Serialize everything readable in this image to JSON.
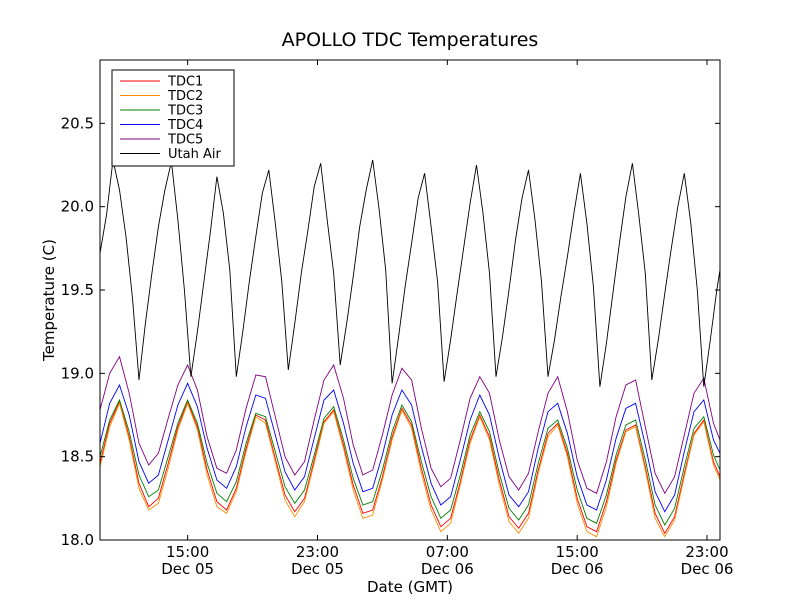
{
  "chart_data": {
    "type": "line",
    "title": "APOLLO TDC Temperatures",
    "xlabel": "Date (GMT)",
    "ylabel": "Temperature (C)",
    "x_unit": "hours since Dec 05 00:00 GMT",
    "xlim": [
      9.6,
      47.8
    ],
    "ylim": [
      18.0,
      20.88
    ],
    "grid": false,
    "legend_position": "top-left",
    "x_ticks": [
      {
        "value": 15,
        "time": "15:00",
        "date": "Dec 05"
      },
      {
        "value": 23,
        "time": "23:00",
        "date": "Dec 05"
      },
      {
        "value": 31,
        "time": "07:00",
        "date": "Dec 06"
      },
      {
        "value": 39,
        "time": "15:00",
        "date": "Dec 06"
      },
      {
        "value": 47,
        "time": "23:00",
        "date": "Dec 06"
      }
    ],
    "y_ticks": [
      {
        "value": 18.0,
        "label": "18.0"
      },
      {
        "value": 18.5,
        "label": "18.5"
      },
      {
        "value": 19.0,
        "label": "19.0"
      },
      {
        "value": 19.5,
        "label": "19.5"
      },
      {
        "value": 20.0,
        "label": "20.0"
      },
      {
        "value": 20.5,
        "label": "20.5"
      }
    ],
    "series": [
      {
        "name": "TDC1",
        "color": "#ff0000",
        "x": [
          9.6,
          10.2,
          10.8,
          11.4,
          12.0,
          12.6,
          13.2,
          13.8,
          14.4,
          15.0,
          15.6,
          16.2,
          16.8,
          17.4,
          18.0,
          18.6,
          19.2,
          19.8,
          20.4,
          21.0,
          21.6,
          22.2,
          22.8,
          23.4,
          24.0,
          24.6,
          25.2,
          25.8,
          26.4,
          27.0,
          27.6,
          28.2,
          28.8,
          29.4,
          30.0,
          30.6,
          31.2,
          31.8,
          32.4,
          33.0,
          33.6,
          34.2,
          34.8,
          35.4,
          36.0,
          36.6,
          37.2,
          37.8,
          38.4,
          39.0,
          39.6,
          40.2,
          40.8,
          41.4,
          42.0,
          42.6,
          43.2,
          43.8,
          44.4,
          45.0,
          45.6,
          46.2,
          46.8,
          47.4,
          47.8
        ],
        "y": [
          18.46,
          18.7,
          18.83,
          18.62,
          18.34,
          18.2,
          18.25,
          18.46,
          18.68,
          18.83,
          18.68,
          18.42,
          18.23,
          18.18,
          18.31,
          18.55,
          18.75,
          18.72,
          18.49,
          18.27,
          18.17,
          18.25,
          18.48,
          18.71,
          18.78,
          18.57,
          18.33,
          18.16,
          18.18,
          18.38,
          18.62,
          18.79,
          18.69,
          18.43,
          18.21,
          18.08,
          18.13,
          18.35,
          18.6,
          18.75,
          18.62,
          18.36,
          18.14,
          18.07,
          18.16,
          18.42,
          18.64,
          18.7,
          18.52,
          18.25,
          18.08,
          18.05,
          18.23,
          18.48,
          18.66,
          18.69,
          18.44,
          18.16,
          18.04,
          18.14,
          18.4,
          18.64,
          18.72,
          18.47,
          18.38
        ]
      },
      {
        "name": "TDC2",
        "color": "#ff8c00",
        "x": [
          9.6,
          10.2,
          10.8,
          11.4,
          12.0,
          12.6,
          13.2,
          13.8,
          14.4,
          15.0,
          15.6,
          16.2,
          16.8,
          17.4,
          18.0,
          18.6,
          19.2,
          19.8,
          20.4,
          21.0,
          21.6,
          22.2,
          22.8,
          23.4,
          24.0,
          24.6,
          25.2,
          25.8,
          26.4,
          27.0,
          27.6,
          28.2,
          28.8,
          29.4,
          30.0,
          30.6,
          31.2,
          31.8,
          32.4,
          33.0,
          33.6,
          34.2,
          34.8,
          35.4,
          36.0,
          36.6,
          37.2,
          37.8,
          38.4,
          39.0,
          39.6,
          40.2,
          40.8,
          41.4,
          42.0,
          42.6,
          43.2,
          43.8,
          44.4,
          45.0,
          45.6,
          46.2,
          46.8,
          47.4,
          47.8
        ],
        "y": [
          18.44,
          18.68,
          18.82,
          18.6,
          18.31,
          18.18,
          18.22,
          18.43,
          18.66,
          18.82,
          18.66,
          18.39,
          18.2,
          18.16,
          18.29,
          18.53,
          18.74,
          18.7,
          18.47,
          18.24,
          18.14,
          18.23,
          18.46,
          18.7,
          18.77,
          18.55,
          18.3,
          18.13,
          18.15,
          18.36,
          18.6,
          18.78,
          18.67,
          18.4,
          18.18,
          18.05,
          18.1,
          18.33,
          18.58,
          18.74,
          18.6,
          18.33,
          18.11,
          18.04,
          18.13,
          18.4,
          18.62,
          18.69,
          18.5,
          18.22,
          18.05,
          18.02,
          18.2,
          18.46,
          18.65,
          18.68,
          18.42,
          18.13,
          18.02,
          18.12,
          18.38,
          18.63,
          18.71,
          18.45,
          18.36
        ]
      },
      {
        "name": "TDC3",
        "color": "#008000",
        "x": [
          9.6,
          10.2,
          10.8,
          11.4,
          12.0,
          12.6,
          13.2,
          13.8,
          14.4,
          15.0,
          15.6,
          16.2,
          16.8,
          17.4,
          18.0,
          18.6,
          19.2,
          19.8,
          20.4,
          21.0,
          21.6,
          22.2,
          22.8,
          23.4,
          24.0,
          24.6,
          25.2,
          25.8,
          26.4,
          27.0,
          27.6,
          28.2,
          28.8,
          29.4,
          30.0,
          30.6,
          31.2,
          31.8,
          32.4,
          33.0,
          33.6,
          34.2,
          34.8,
          35.4,
          36.0,
          36.6,
          37.2,
          37.8,
          38.4,
          39.0,
          39.6,
          40.2,
          40.8,
          41.4,
          42.0,
          42.6,
          43.2,
          43.8,
          44.4,
          45.0,
          45.6,
          46.2,
          46.8,
          47.4,
          47.8
        ],
        "y": [
          18.5,
          18.72,
          18.84,
          18.65,
          18.39,
          18.26,
          18.3,
          18.5,
          18.7,
          18.84,
          18.7,
          18.46,
          18.28,
          18.23,
          18.35,
          18.58,
          18.76,
          18.74,
          18.53,
          18.32,
          18.22,
          18.3,
          18.51,
          18.73,
          18.8,
          18.6,
          18.37,
          18.21,
          18.23,
          18.42,
          18.65,
          18.81,
          18.71,
          18.47,
          18.26,
          18.13,
          18.18,
          18.39,
          18.63,
          18.77,
          18.65,
          18.4,
          18.19,
          18.12,
          18.21,
          18.46,
          18.67,
          18.72,
          18.55,
          18.3,
          18.13,
          18.1,
          18.27,
          18.51,
          18.69,
          18.72,
          18.48,
          18.21,
          18.09,
          18.19,
          18.44,
          18.67,
          18.74,
          18.51,
          18.42
        ]
      },
      {
        "name": "TDC4",
        "color": "#0000ff",
        "x": [
          9.6,
          10.2,
          10.8,
          11.4,
          12.0,
          12.6,
          13.2,
          13.8,
          14.4,
          15.0,
          15.6,
          16.2,
          16.8,
          17.4,
          18.0,
          18.6,
          19.2,
          19.8,
          20.4,
          21.0,
          21.6,
          22.2,
          22.8,
          23.4,
          24.0,
          24.6,
          25.2,
          25.8,
          26.4,
          27.0,
          27.6,
          28.2,
          28.8,
          29.4,
          30.0,
          30.6,
          31.2,
          31.8,
          32.4,
          33.0,
          33.6,
          34.2,
          34.8,
          35.4,
          36.0,
          36.6,
          37.2,
          37.8,
          38.4,
          39.0,
          39.6,
          40.2,
          40.8,
          41.4,
          42.0,
          42.6,
          43.2,
          43.8,
          44.4,
          45.0,
          45.6,
          46.2,
          46.8,
          47.4,
          47.8
        ],
        "y": [
          18.58,
          18.82,
          18.93,
          18.75,
          18.47,
          18.34,
          18.39,
          18.6,
          18.81,
          18.94,
          18.8,
          18.55,
          18.36,
          18.31,
          18.44,
          18.68,
          18.87,
          18.85,
          18.63,
          18.41,
          18.3,
          18.38,
          18.61,
          18.84,
          18.9,
          18.7,
          18.46,
          18.29,
          18.31,
          18.51,
          18.75,
          18.9,
          18.81,
          18.56,
          18.34,
          18.21,
          18.26,
          18.48,
          18.72,
          18.87,
          18.75,
          18.49,
          18.27,
          18.2,
          18.29,
          18.55,
          18.77,
          18.82,
          18.64,
          18.38,
          18.21,
          18.18,
          18.36,
          18.61,
          18.79,
          18.82,
          18.57,
          18.29,
          18.17,
          18.27,
          18.53,
          18.77,
          18.84,
          18.6,
          18.52
        ]
      },
      {
        "name": "TDC5",
        "color": "#800080",
        "x": [
          9.6,
          10.2,
          10.8,
          11.4,
          12.0,
          12.6,
          13.2,
          13.8,
          14.4,
          15.0,
          15.6,
          16.2,
          16.8,
          17.4,
          18.0,
          18.6,
          19.2,
          19.8,
          20.4,
          21.0,
          21.6,
          22.2,
          22.8,
          23.4,
          24.0,
          24.6,
          25.2,
          25.8,
          26.4,
          27.0,
          27.6,
          28.2,
          28.8,
          29.4,
          30.0,
          30.6,
          31.2,
          31.8,
          32.4,
          33.0,
          33.6,
          34.2,
          34.8,
          35.4,
          36.0,
          36.6,
          37.2,
          37.8,
          38.4,
          39.0,
          39.6,
          40.2,
          40.8,
          41.4,
          42.0,
          42.6,
          43.2,
          43.8,
          44.4,
          45.0,
          45.6,
          46.2,
          46.8,
          47.4,
          47.8
        ],
        "y": [
          18.78,
          19.0,
          19.1,
          18.88,
          18.58,
          18.45,
          18.52,
          18.73,
          18.93,
          19.05,
          18.9,
          18.62,
          18.43,
          18.4,
          18.54,
          18.79,
          18.99,
          18.98,
          18.74,
          18.5,
          18.39,
          18.47,
          18.72,
          18.96,
          19.05,
          18.85,
          18.57,
          18.39,
          18.42,
          18.63,
          18.87,
          19.03,
          18.96,
          18.67,
          18.43,
          18.32,
          18.37,
          18.6,
          18.85,
          18.98,
          18.88,
          18.6,
          18.38,
          18.3,
          18.4,
          18.65,
          18.88,
          18.98,
          18.77,
          18.48,
          18.31,
          18.28,
          18.47,
          18.74,
          18.93,
          18.96,
          18.68,
          18.4,
          18.28,
          18.38,
          18.63,
          18.88,
          18.97,
          18.7,
          18.6
        ]
      },
      {
        "name": "Utah Air",
        "color": "#000000",
        "x": [
          9.6,
          10.0,
          10.4,
          10.8,
          11.2,
          11.6,
          12.0,
          12.4,
          12.8,
          13.2,
          13.6,
          14.0,
          14.4,
          14.8,
          15.2,
          15.6,
          16.0,
          16.4,
          16.8,
          17.2,
          17.6,
          18.0,
          18.4,
          18.8,
          19.2,
          19.6,
          20.0,
          20.4,
          20.8,
          21.2,
          21.6,
          22.0,
          22.4,
          22.8,
          23.2,
          23.6,
          24.0,
          24.4,
          24.8,
          25.2,
          25.6,
          26.0,
          26.4,
          26.8,
          27.2,
          27.6,
          28.0,
          28.4,
          28.8,
          29.2,
          29.6,
          30.0,
          30.4,
          30.8,
          31.2,
          31.6,
          32.0,
          32.4,
          32.8,
          33.2,
          33.6,
          34.0,
          34.4,
          34.8,
          35.2,
          35.6,
          36.0,
          36.4,
          36.8,
          37.2,
          37.6,
          38.0,
          38.4,
          38.8,
          39.2,
          39.6,
          40.0,
          40.4,
          40.8,
          41.2,
          41.6,
          42.0,
          42.4,
          42.8,
          43.2,
          43.6,
          44.0,
          44.4,
          44.8,
          45.2,
          45.6,
          46.0,
          46.4,
          46.8,
          47.2,
          47.6,
          47.8
        ],
        "y": [
          19.72,
          19.95,
          20.28,
          20.1,
          19.82,
          19.45,
          18.96,
          19.3,
          19.6,
          19.88,
          20.1,
          20.27,
          19.92,
          19.5,
          18.98,
          19.25,
          19.55,
          19.85,
          20.18,
          19.96,
          19.62,
          18.98,
          19.25,
          19.55,
          19.82,
          20.08,
          20.22,
          19.9,
          19.55,
          19.02,
          19.3,
          19.6,
          19.85,
          20.12,
          20.26,
          19.92,
          19.6,
          19.05,
          19.3,
          19.58,
          19.88,
          20.1,
          20.28,
          19.98,
          19.62,
          18.94,
          19.22,
          19.52,
          19.78,
          20.05,
          20.2,
          19.88,
          19.55,
          18.95,
          19.2,
          19.48,
          19.75,
          20.02,
          20.25,
          19.96,
          19.6,
          18.98,
          19.22,
          19.5,
          19.8,
          20.05,
          20.22,
          19.92,
          19.55,
          18.98,
          19.2,
          19.46,
          19.7,
          19.96,
          20.2,
          19.9,
          19.52,
          18.92,
          19.18,
          19.48,
          19.78,
          20.06,
          20.26,
          19.95,
          19.6,
          18.96,
          19.2,
          19.48,
          19.75,
          20.0,
          20.2,
          19.9,
          19.5,
          18.92,
          19.2,
          19.5,
          19.62
        ]
      }
    ]
  }
}
